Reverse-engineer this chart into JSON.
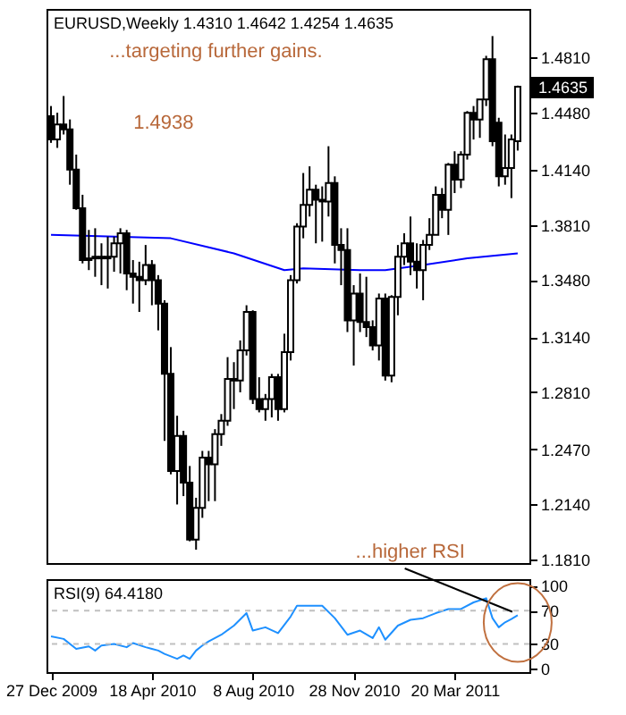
{
  "chart_data": [
    {
      "type": "candlestick",
      "title": "EURUSD,Weekly  1.4310 1.4642 1.4254 1.4635",
      "x": [
        "2009-12-27",
        "2010-01-03",
        "2010-01-10",
        "2010-01-17",
        "2010-01-24",
        "2010-01-31",
        "2010-02-07",
        "2010-02-14",
        "2010-02-21",
        "2010-02-28",
        "2010-03-07",
        "2010-03-14",
        "2010-03-21",
        "2010-03-28",
        "2010-04-04",
        "2010-04-11",
        "2010-04-18",
        "2010-04-25",
        "2010-05-02",
        "2010-05-09",
        "2010-05-16",
        "2010-05-23",
        "2010-05-30",
        "2010-06-06",
        "2010-06-13",
        "2010-06-20",
        "2010-06-27",
        "2010-07-04",
        "2010-07-11",
        "2010-07-18",
        "2010-07-25",
        "2010-08-01",
        "2010-08-08",
        "2010-08-15",
        "2010-08-22",
        "2010-08-29",
        "2010-09-05",
        "2010-09-12",
        "2010-09-19",
        "2010-09-26",
        "2010-10-03",
        "2010-10-10",
        "2010-10-17",
        "2010-10-24",
        "2010-10-31",
        "2010-11-07",
        "2010-11-14",
        "2010-11-21",
        "2010-11-28",
        "2010-12-05",
        "2010-12-12",
        "2010-12-19",
        "2010-12-26",
        "2011-01-02",
        "2011-01-09",
        "2011-01-16",
        "2011-01-23",
        "2011-01-30",
        "2011-02-06",
        "2011-02-13",
        "2011-02-20",
        "2011-02-27",
        "2011-03-06",
        "2011-03-13",
        "2011-03-20",
        "2011-03-27",
        "2011-04-03",
        "2011-04-10",
        "2011-04-17",
        "2011-04-24",
        "2011-05-01",
        "2011-05-08",
        "2011-05-15",
        "2011-05-22",
        "2011-05-29"
      ],
      "ohlc": [
        [
          1.446,
          1.452,
          1.43,
          1.432
        ],
        [
          1.432,
          1.448,
          1.427,
          1.441
        ],
        [
          1.441,
          1.458,
          1.435,
          1.438
        ],
        [
          1.438,
          1.444,
          1.405,
          1.414
        ],
        [
          1.414,
          1.423,
          1.39,
          1.391
        ],
        [
          1.391,
          1.399,
          1.358,
          1.36
        ],
        [
          1.36,
          1.378,
          1.354,
          1.361
        ],
        [
          1.361,
          1.379,
          1.35,
          1.362
        ],
        [
          1.362,
          1.37,
          1.345,
          1.361
        ],
        [
          1.361,
          1.374,
          1.343,
          1.362
        ],
        [
          1.362,
          1.374,
          1.353,
          1.37
        ],
        [
          1.37,
          1.379,
          1.352,
          1.376
        ],
        [
          1.376,
          1.378,
          1.342,
          1.352
        ],
        [
          1.352,
          1.36,
          1.334,
          1.35
        ],
        [
          1.35,
          1.359,
          1.329,
          1.348
        ],
        [
          1.348,
          1.369,
          1.345,
          1.357
        ],
        [
          1.357,
          1.36,
          1.333,
          1.348
        ],
        [
          1.348,
          1.351,
          1.318,
          1.334
        ],
        [
          1.334,
          1.336,
          1.252,
          1.292
        ],
        [
          1.292,
          1.308,
          1.232,
          1.234
        ],
        [
          1.234,
          1.267,
          1.214,
          1.255
        ],
        [
          1.255,
          1.258,
          1.219,
          1.227
        ],
        [
          1.227,
          1.237,
          1.192,
          1.193
        ],
        [
          1.193,
          1.218,
          1.187,
          1.212
        ],
        [
          1.212,
          1.246,
          1.206,
          1.242
        ],
        [
          1.242,
          1.246,
          1.216,
          1.238
        ],
        [
          1.238,
          1.259,
          1.216,
          1.256
        ],
        [
          1.256,
          1.268,
          1.249,
          1.264
        ],
        [
          1.264,
          1.302,
          1.261,
          1.289
        ],
        [
          1.289,
          1.299,
          1.271,
          1.288
        ],
        [
          1.288,
          1.312,
          1.281,
          1.306
        ],
        [
          1.306,
          1.333,
          1.303,
          1.329
        ],
        [
          1.329,
          1.33,
          1.274,
          1.277
        ],
        [
          1.277,
          1.29,
          1.269,
          1.271
        ],
        [
          1.271,
          1.28,
          1.264,
          1.277
        ],
        [
          1.277,
          1.292,
          1.266,
          1.29
        ],
        [
          1.29,
          1.292,
          1.264,
          1.271
        ],
        [
          1.271,
          1.316,
          1.269,
          1.305
        ],
        [
          1.305,
          1.351,
          1.3,
          1.348
        ],
        [
          1.348,
          1.382,
          1.346,
          1.38
        ],
        [
          1.38,
          1.412,
          1.373,
          1.393
        ],
        [
          1.393,
          1.416,
          1.386,
          1.402
        ],
        [
          1.402,
          1.405,
          1.37,
          1.396
        ],
        [
          1.396,
          1.404,
          1.371,
          1.395
        ],
        [
          1.395,
          1.428,
          1.386,
          1.406
        ],
        [
          1.406,
          1.41,
          1.358,
          1.369
        ],
        [
          1.369,
          1.379,
          1.345,
          1.366
        ],
        [
          1.366,
          1.379,
          1.317,
          1.324
        ],
        [
          1.324,
          1.345,
          1.297,
          1.34
        ],
        [
          1.34,
          1.352,
          1.317,
          1.323
        ],
        [
          1.323,
          1.35,
          1.314,
          1.32
        ],
        [
          1.32,
          1.324,
          1.306,
          1.309
        ],
        [
          1.309,
          1.34,
          1.3,
          1.337
        ],
        [
          1.337,
          1.34,
          1.288,
          1.291
        ],
        [
          1.291,
          1.339,
          1.287,
          1.338
        ],
        [
          1.338,
          1.369,
          1.327,
          1.362
        ],
        [
          1.362,
          1.376,
          1.357,
          1.37
        ],
        [
          1.37,
          1.386,
          1.351,
          1.359
        ],
        [
          1.359,
          1.37,
          1.343,
          1.354
        ],
        [
          1.354,
          1.372,
          1.336,
          1.369
        ],
        [
          1.369,
          1.385,
          1.366,
          1.375
        ],
        [
          1.375,
          1.404,
          1.375,
          1.399
        ],
        [
          1.399,
          1.403,
          1.385,
          1.39
        ],
        [
          1.39,
          1.418,
          1.375,
          1.417
        ],
        [
          1.417,
          1.425,
          1.4,
          1.408
        ],
        [
          1.408,
          1.425,
          1.403,
          1.423
        ],
        [
          1.423,
          1.449,
          1.42,
          1.448
        ],
        [
          1.448,
          1.452,
          1.432,
          1.444
        ],
        [
          1.444,
          1.456,
          1.433,
          1.456
        ],
        [
          1.456,
          1.482,
          1.452,
          1.48
        ],
        [
          1.48,
          1.4938,
          1.428,
          1.431
        ],
        [
          1.442,
          1.445,
          1.404,
          1.41
        ],
        [
          1.41,
          1.435,
          1.405,
          1.415
        ],
        [
          1.415,
          1.435,
          1.397,
          1.432
        ],
        [
          1.431,
          1.4642,
          1.4254,
          1.4635
        ]
      ],
      "series": [
        {
          "type": "line",
          "color": "#0000ff",
          "x": [
            "2009-12-27",
            "2010-05-09",
            "2010-07-18",
            "2010-09-12",
            "2010-10-03",
            "2010-12-05",
            "2011-01-02",
            "2011-02-13",
            "2011-04-03",
            "2011-05-29"
          ],
          "values": [
            1.375,
            1.373,
            1.364,
            1.354,
            1.355,
            1.354,
            1.354,
            1.357,
            1.361,
            1.364
          ]
        }
      ],
      "xlim": [
        "2009-12-22",
        "2011-06-11"
      ],
      "ylim": [
        1.179,
        1.51
      ],
      "yticks": [
        {
          "value": 1.181,
          "label": "1.1810"
        },
        {
          "value": 1.214,
          "label": "1.2140"
        },
        {
          "value": 1.247,
          "label": "1.2470"
        },
        {
          "value": 1.281,
          "label": "1.2810"
        },
        {
          "value": 1.314,
          "label": "1.3140"
        },
        {
          "value": 1.348,
          "label": "1.3480"
        },
        {
          "value": 1.381,
          "label": "1.3810"
        },
        {
          "value": 1.414,
          "label": "1.4140"
        },
        {
          "value": 1.448,
          "label": "1.4480"
        },
        {
          "value": 1.481,
          "label": "1.4810"
        }
      ],
      "tick_labels": "y",
      "annotations": [
        "...targeting further gains.",
        "1.4938",
        "1.4635",
        "...higher RSI"
      ]
    },
    {
      "type": "line",
      "title": "RSI(9) 64.4180",
      "series": [
        {
          "color": "#1e90ff",
          "x": [
            "2009-12-27",
            "2010-01-10",
            "2010-01-24",
            "2010-02-07",
            "2010-02-14",
            "2010-02-21",
            "2010-03-07",
            "2010-03-21",
            "2010-03-28",
            "2010-04-11",
            "2010-04-18",
            "2010-04-25",
            "2010-05-02",
            "2010-05-09",
            "2010-05-16",
            "2010-05-23",
            "2010-05-30",
            "2010-06-06",
            "2010-06-13",
            "2010-06-20",
            "2010-07-04",
            "2010-07-18",
            "2010-08-01",
            "2010-08-08",
            "2010-08-22",
            "2010-09-05",
            "2010-09-19",
            "2010-09-26",
            "2010-10-10",
            "2010-10-24",
            "2010-11-07",
            "2010-11-21",
            "2010-12-05",
            "2010-12-19",
            "2010-12-26",
            "2011-01-02",
            "2011-01-16",
            "2011-01-30",
            "2011-02-13",
            "2011-02-27",
            "2011-03-13",
            "2011-03-27",
            "2011-04-10",
            "2011-04-24",
            "2011-05-01",
            "2011-05-08",
            "2011-05-15",
            "2011-05-22",
            "2011-05-29"
          ],
          "values": [
            39,
            36,
            24,
            27,
            22,
            28,
            30,
            26,
            31,
            26,
            24,
            22,
            18,
            15,
            12,
            16,
            12,
            22,
            28,
            33,
            41,
            52,
            67,
            46,
            50,
            43,
            63,
            76,
            76,
            76,
            61,
            41,
            46,
            37,
            50,
            35,
            52,
            59,
            61,
            67,
            72,
            72,
            80,
            85,
            61,
            50,
            56,
            60,
            64.418
          ]
        }
      ],
      "xlim": [
        "2009-12-22",
        "2011-06-11"
      ],
      "xticks": [
        {
          "value": "2009-12-27",
          "label": "27 Dec 2009"
        },
        {
          "value": "2010-04-18",
          "label": "18 Apr 2010"
        },
        {
          "value": "2010-08-08",
          "label": "8 Aug 2010"
        },
        {
          "value": "2010-11-28",
          "label": "28 Nov 2010"
        },
        {
          "value": "2011-03-20",
          "label": "20 Mar 2011"
        }
      ],
      "ylim": [
        -4,
        108
      ],
      "yticks": [
        0,
        30,
        70,
        100
      ],
      "ref_lines": [
        {
          "axis": "y",
          "value": 30,
          "color": "#c0c0c0",
          "line_style": "dashed"
        },
        {
          "axis": "y",
          "value": 70,
          "color": "#c0c0c0",
          "line_style": "dashed"
        }
      ]
    }
  ]
}
